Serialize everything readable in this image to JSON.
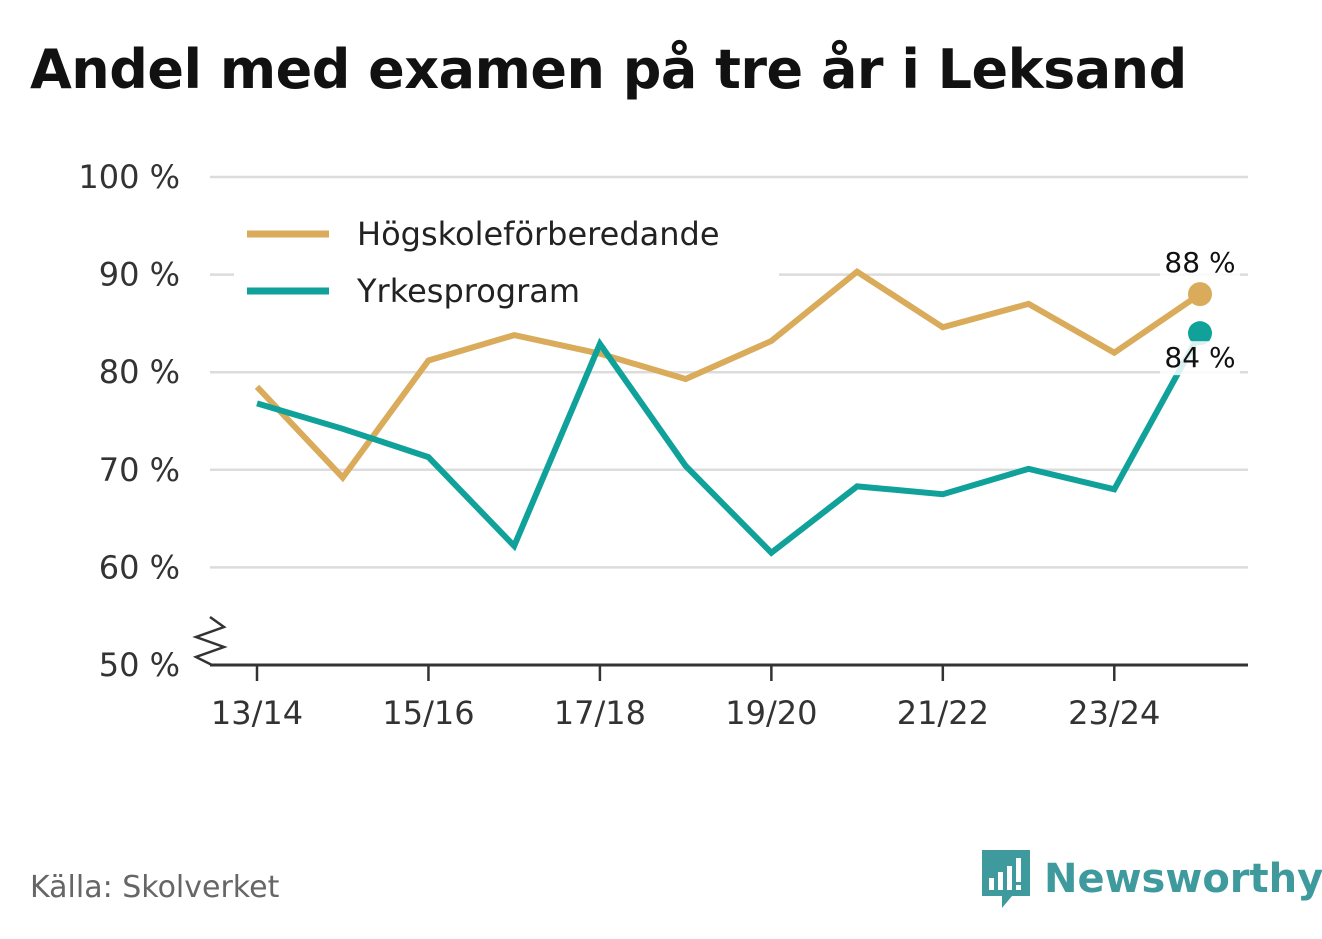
{
  "chart_data": {
    "type": "line",
    "title": "Andel med examen på tre år i Leksand",
    "categories": [
      "13/14",
      "14/15",
      "15/16",
      "16/17",
      "17/18",
      "18/19",
      "19/20",
      "20/21",
      "21/22",
      "22/23",
      "23/24",
      "24/25"
    ],
    "x_tick_labels": [
      "13/14",
      "15/16",
      "17/18",
      "19/20",
      "21/22",
      "23/24"
    ],
    "y_ticks": [
      50,
      60,
      70,
      80,
      90,
      100
    ],
    "y_tick_labels": [
      "50 %",
      "60 %",
      "70 %",
      "80 %",
      "90 %",
      "100 %"
    ],
    "ylim": [
      50,
      100
    ],
    "axis_break": true,
    "grid": true,
    "legend_position": "top-left",
    "series": [
      {
        "name": "Högskoleförberedande",
        "color": "#d9ab5b",
        "values": [
          78.5,
          69.2,
          81.2,
          83.8,
          81.9,
          79.3,
          83.2,
          90.3,
          84.6,
          87.0,
          82.0,
          88.0
        ],
        "end_label": "88 %"
      },
      {
        "name": "Yrkesprogram",
        "color": "#10a29a",
        "values": [
          76.8,
          74.2,
          71.3,
          62.2,
          82.9,
          70.4,
          61.5,
          68.3,
          67.5,
          70.1,
          68.0,
          84.0
        ],
        "end_label": "84 %"
      }
    ],
    "source": "Källa: Skolverket"
  },
  "brand": {
    "name": "Newsworthy",
    "icon": "newsworthy-logo-icon",
    "color": "#3e9a9c"
  }
}
